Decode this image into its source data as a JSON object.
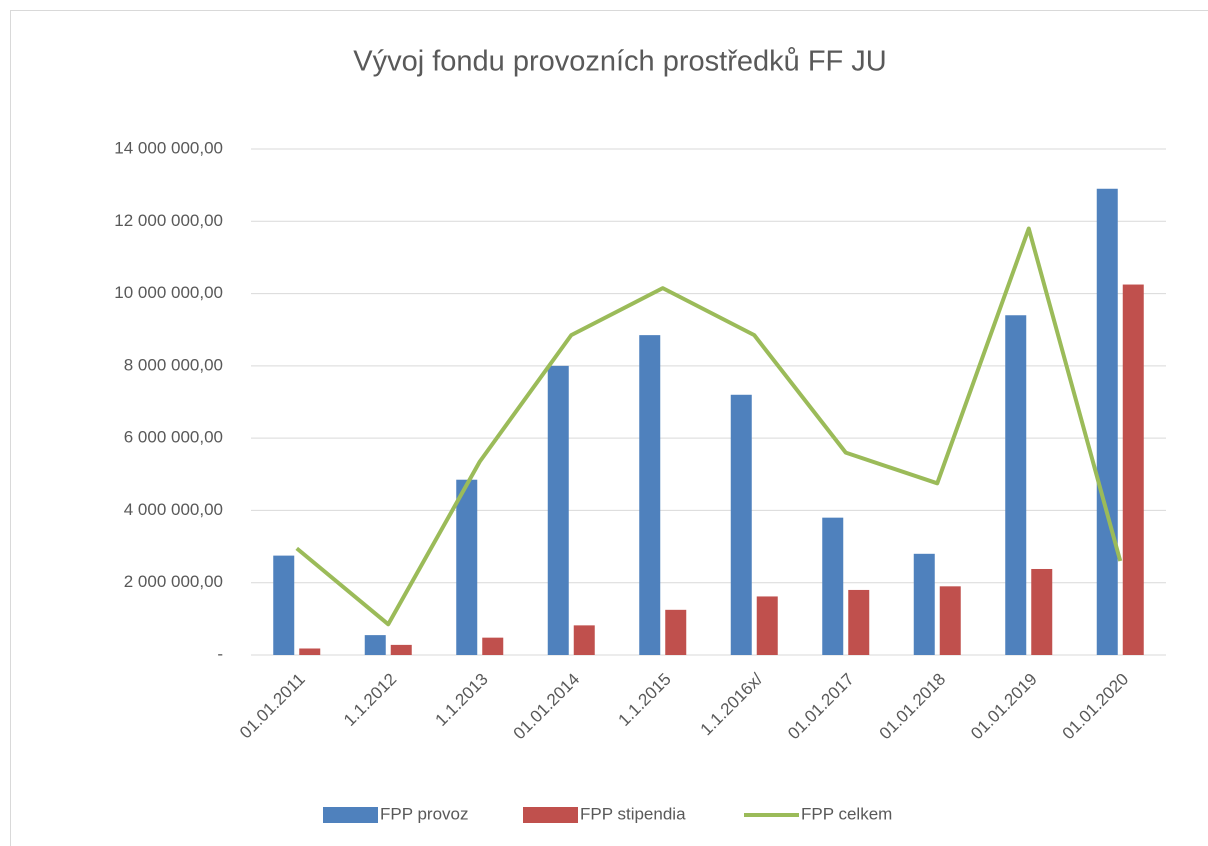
{
  "chart_data": {
    "type": "bar",
    "title": "Vývoj fondu provozních prostředků FF JU",
    "categories": [
      "01.01.2011",
      "1.1.2012",
      "1.1.2013",
      "01.01.2014",
      "1.1.2015",
      "1.1.2016x/",
      "01.01.2017",
      "01.01.2018",
      "01.01.2019",
      "01.01.2020"
    ],
    "series": [
      {
        "name": "FPP provoz",
        "type": "bar",
        "color": "#4f81bd",
        "values": [
          2750000,
          550000,
          4850000,
          8000000,
          8850000,
          7200000,
          3800000,
          2800000,
          9400000,
          12900000
        ]
      },
      {
        "name": "FPP stipendia",
        "type": "bar",
        "color": "#c0504d",
        "values": [
          180000,
          280000,
          480000,
          820000,
          1250000,
          1620000,
          1800000,
          1900000,
          2380000,
          10250000
        ]
      },
      {
        "name": "FPP celkem",
        "type": "line",
        "color": "#9bbb59",
        "values": [
          2950000,
          850000,
          5350000,
          8850000,
          10150000,
          8850000,
          5600000,
          4750000,
          11800000,
          2600000
        ]
      }
    ],
    "ylim": [
      0,
      14000000
    ],
    "yticks": [
      {
        "value": 0,
        "label": "-"
      },
      {
        "value": 2000000,
        "label": "2 000 000,00"
      },
      {
        "value": 4000000,
        "label": "4 000 000,00"
      },
      {
        "value": 6000000,
        "label": "6 000 000,00"
      },
      {
        "value": 8000000,
        "label": "8 000 000,00"
      },
      {
        "value": 10000000,
        "label": "10 000 000,00"
      },
      {
        "value": 12000000,
        "label": "12 000 000,00"
      },
      {
        "value": 14000000,
        "label": "14 000 000,00"
      }
    ],
    "grid": true,
    "legend": "bottom"
  }
}
